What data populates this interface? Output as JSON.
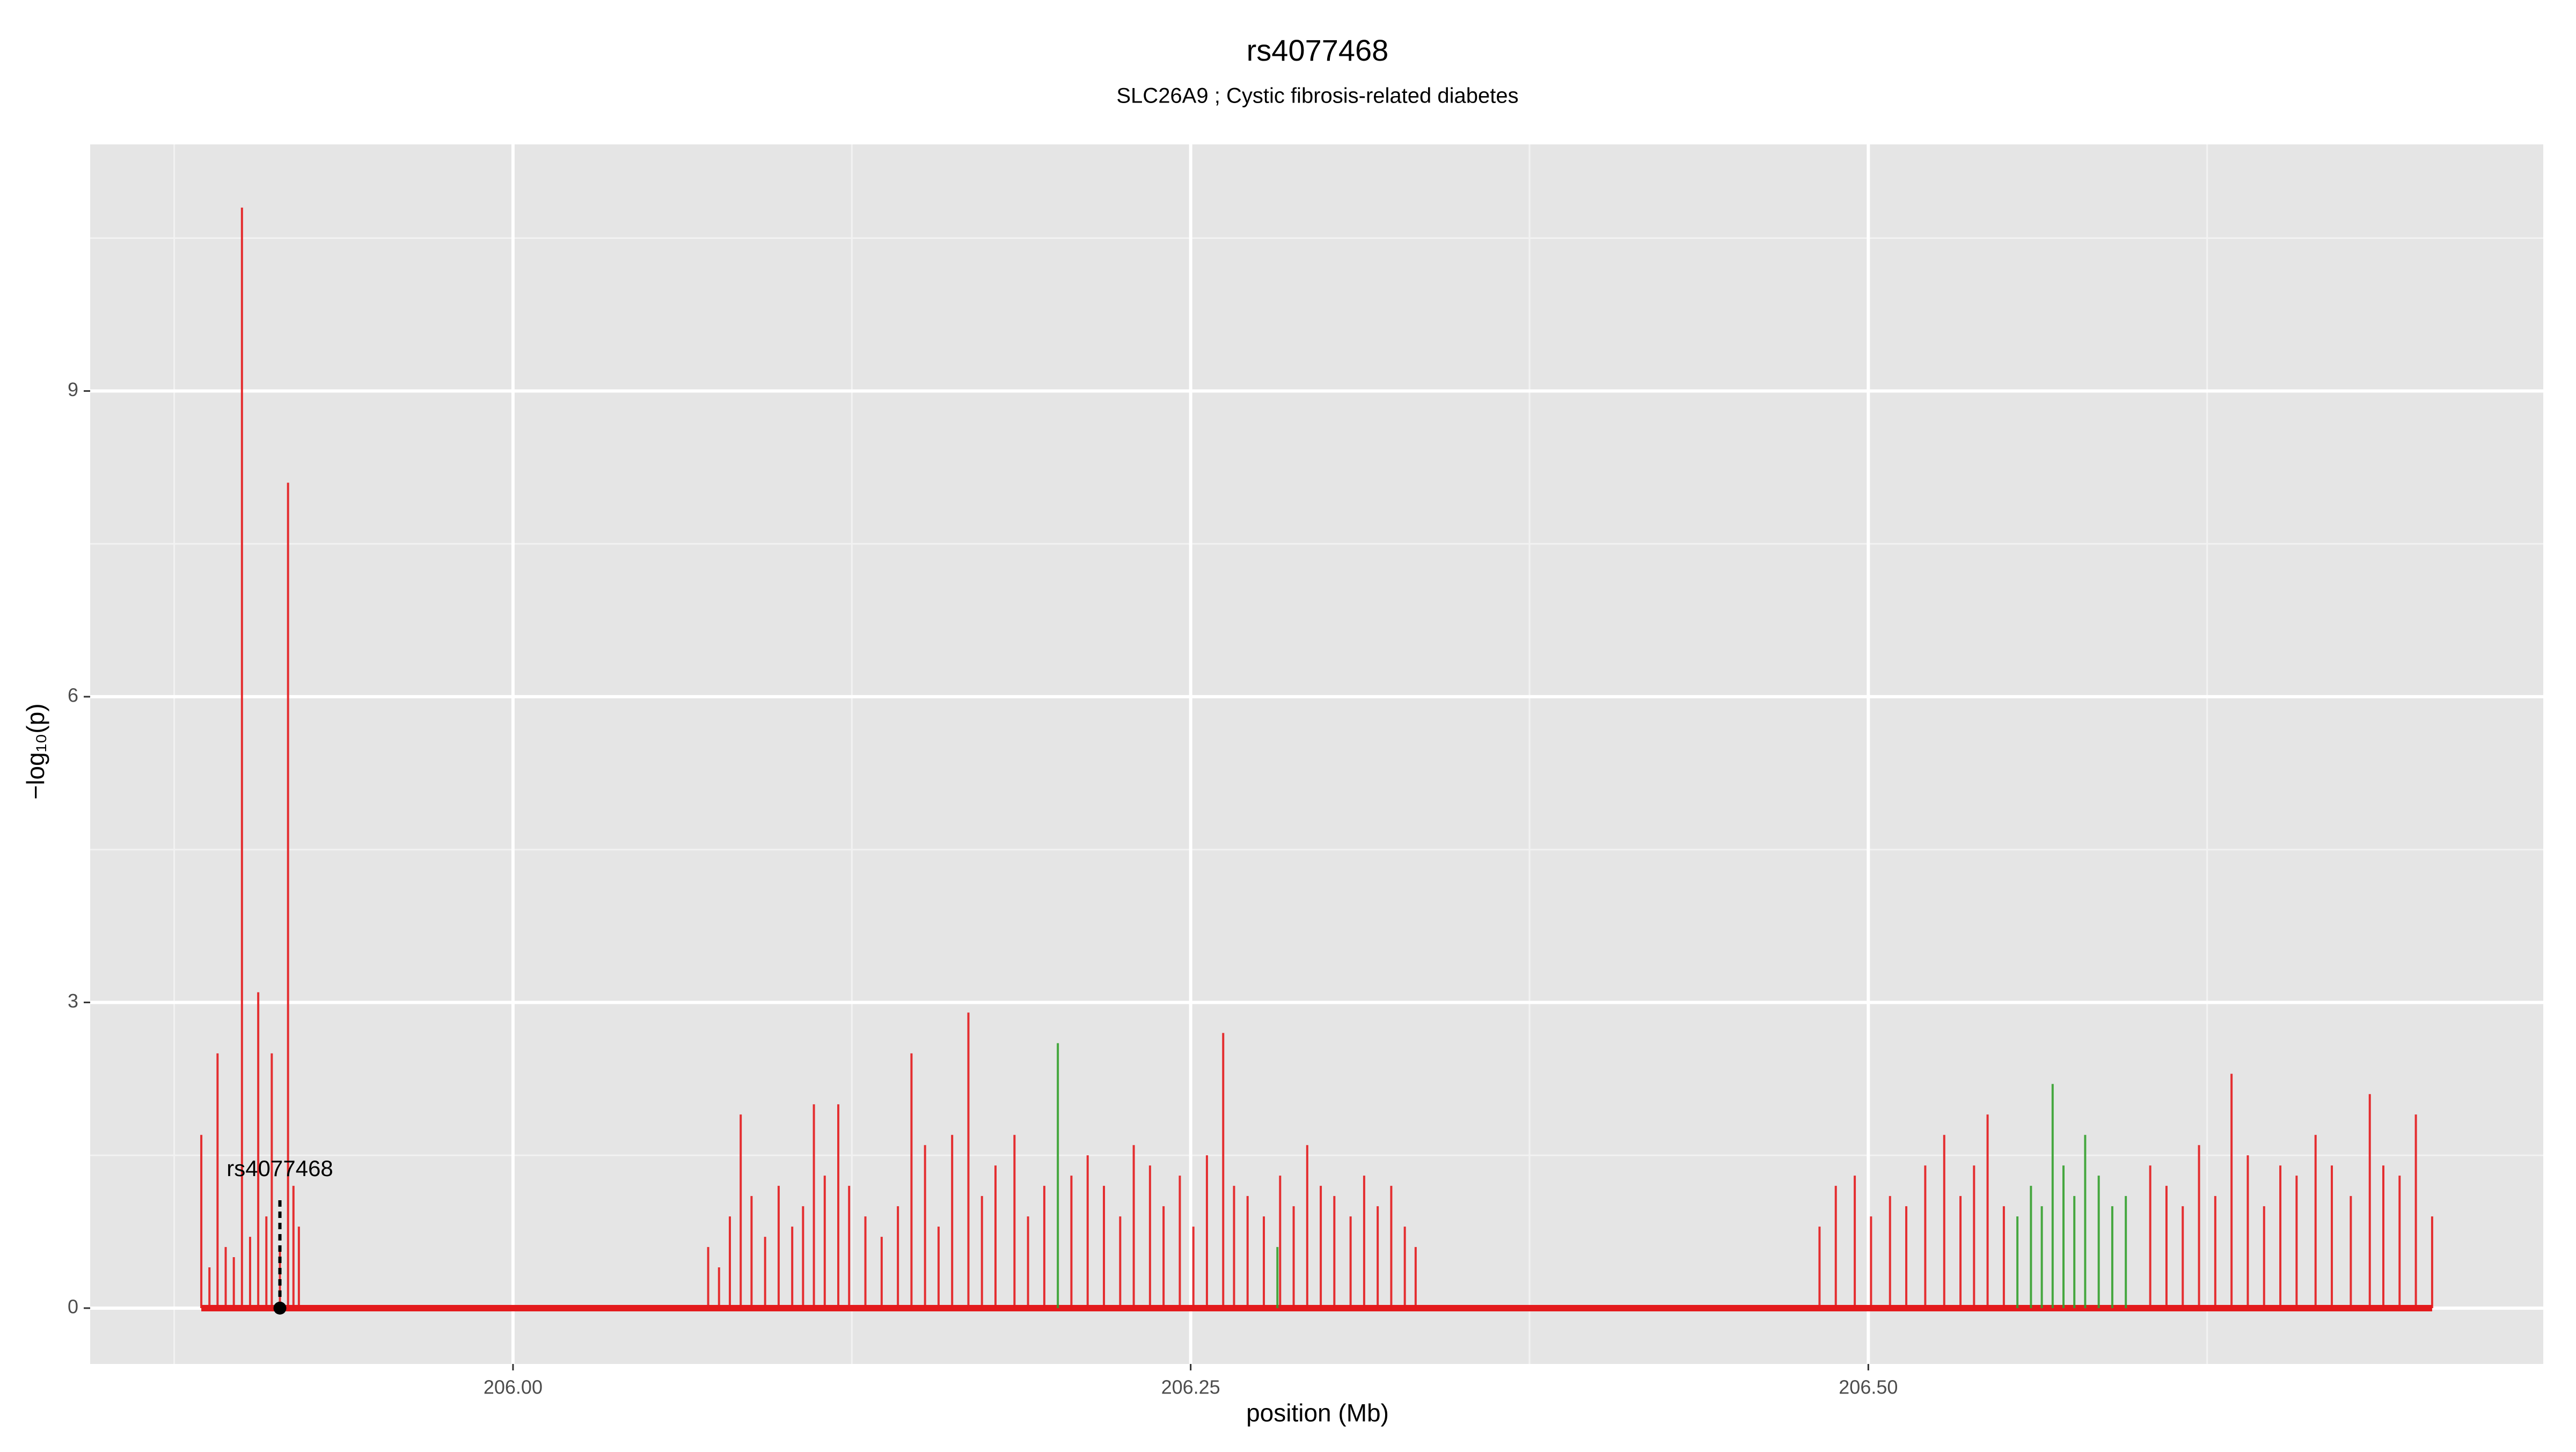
{
  "chart_data": {
    "type": "spike",
    "title": "rs4077468",
    "subtitle": "SLC26A9 ; Cystic fibrosis-related diabetes",
    "xlabel": "position (Mb)",
    "ylabel": "−log₁₀(p)",
    "xlim": [
      205.844,
      206.749
    ],
    "ylim": [
      -0.548,
      11.42
    ],
    "xticks": [
      {
        "value": 206,
        "label": "206.00"
      },
      {
        "value": 206.25,
        "label": "206.25"
      },
      {
        "value": 206.5,
        "label": "206.50"
      }
    ],
    "yticks": [
      0,
      3,
      6,
      9
    ],
    "grid": true,
    "background": "#e5e5e5",
    "series": [
      {
        "color": "#e31a1c",
        "x": [
          205.885,
          205.888,
          205.891,
          205.894,
          205.897,
          205.9,
          205.903,
          205.906,
          205.909,
          205.911,
          205.914,
          205.917,
          205.919,
          205.921,
          206.072,
          206.076,
          206.08,
          206.084,
          206.088,
          206.093,
          206.098,
          206.103,
          206.107,
          206.111,
          206.115,
          206.12,
          206.124,
          206.13,
          206.136,
          206.142,
          206.147,
          206.152,
          206.157,
          206.162,
          206.168,
          206.173,
          206.178,
          206.185,
          206.19,
          206.196,
          206.206,
          206.212,
          206.218,
          206.224,
          206.229,
          206.235,
          206.24,
          206.246,
          206.251,
          206.256,
          206.262,
          206.266,
          206.271,
          206.277,
          206.283,
          206.288,
          206.293,
          206.298,
          206.303,
          206.309,
          206.314,
          206.319,
          206.324,
          206.329,
          206.333,
          206.482,
          206.488,
          206.495,
          206.501,
          206.508,
          206.514,
          206.521,
          206.528,
          206.534,
          206.539,
          206.544,
          206.55,
          206.604,
          206.61,
          206.616,
          206.622,
          206.628,
          206.634,
          206.64,
          206.646,
          206.652,
          206.658,
          206.665,
          206.671,
          206.678,
          206.685,
          206.69,
          206.696,
          206.702,
          206.708
        ],
        "values": [
          1.7,
          0.4,
          2.5,
          0.6,
          0.5,
          10.8,
          0.7,
          3.1,
          0.9,
          2.5,
          0.6,
          8.1,
          1.2,
          0.8,
          0.6,
          0.4,
          0.9,
          1.9,
          1.1,
          0.7,
          1.2,
          0.8,
          1.0,
          2.0,
          1.3,
          2.0,
          1.2,
          0.9,
          0.7,
          1.0,
          2.5,
          1.6,
          0.8,
          1.7,
          2.9,
          1.1,
          1.4,
          1.7,
          0.9,
          1.2,
          1.3,
          1.5,
          1.2,
          0.9,
          1.6,
          1.4,
          1.0,
          1.3,
          0.8,
          1.5,
          2.7,
          1.2,
          1.1,
          0.9,
          1.3,
          1.0,
          1.6,
          1.2,
          1.1,
          0.9,
          1.3,
          1.0,
          1.2,
          0.8,
          0.6,
          0.8,
          1.2,
          1.3,
          0.9,
          1.1,
          1.0,
          1.4,
          1.7,
          1.1,
          1.4,
          1.9,
          1.0,
          1.4,
          1.2,
          1.0,
          1.6,
          1.1,
          2.3,
          1.5,
          1.0,
          1.4,
          1.3,
          1.7,
          1.4,
          1.1,
          2.1,
          1.4,
          1.3,
          1.9,
          0.9
        ]
      },
      {
        "color": "#33a02c",
        "x": [
          206.201,
          206.282,
          206.555,
          206.56,
          206.564,
          206.568,
          206.572,
          206.576,
          206.58,
          206.585,
          206.59,
          206.595
        ],
        "values": [
          2.6,
          0.6,
          0.9,
          1.2,
          1.0,
          2.2,
          1.4,
          1.1,
          1.7,
          1.3,
          1.0,
          1.1
        ]
      }
    ],
    "highlight": {
      "label": "rs4077468",
      "x": 205.914,
      "value": 0,
      "line_to": 1.1
    }
  }
}
